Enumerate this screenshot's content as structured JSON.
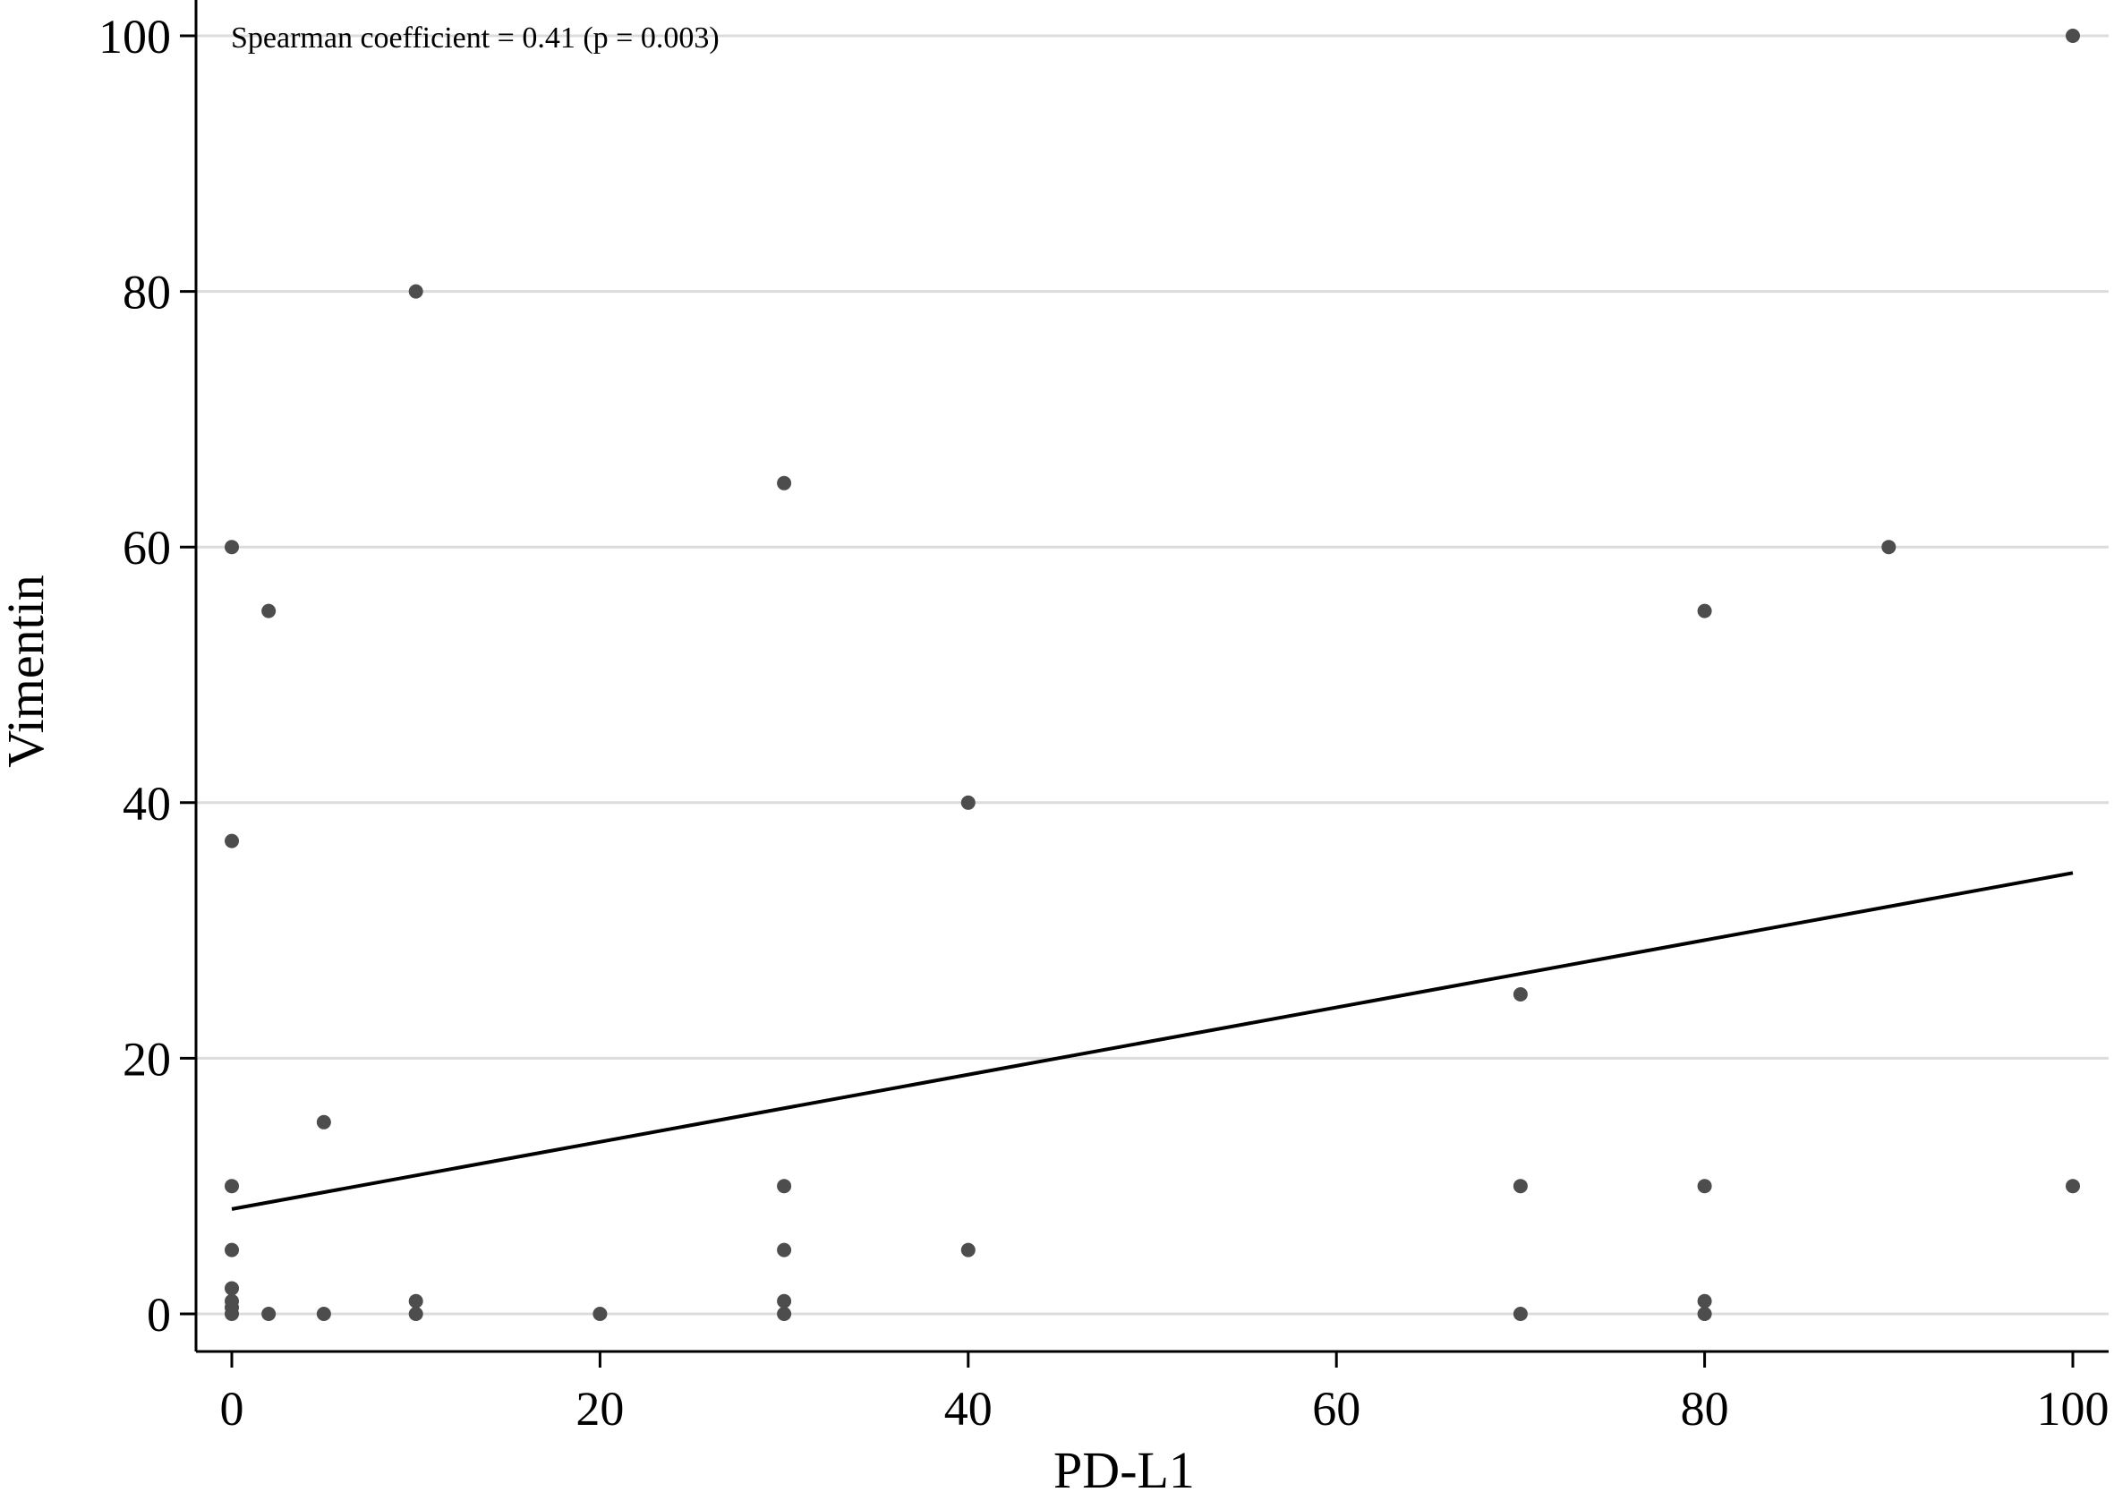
{
  "chart_data": {
    "type": "scatter",
    "title": "",
    "xlabel": "PD-L1",
    "ylabel": "Vimentin",
    "xlim": [
      0,
      100
    ],
    "ylim": [
      0,
      100
    ],
    "x_ticks": [
      0,
      20,
      40,
      60,
      80,
      100
    ],
    "y_ticks": [
      0,
      20,
      40,
      60,
      80,
      100
    ],
    "grid": "horizontal",
    "legend": "none",
    "annotation": "Spearman coefficient = 0.41 (p = 0.003)",
    "colors": {
      "points": "#4d4d4d",
      "fit_line": "#000000",
      "grid": "#dcdcdc",
      "axis": "#000000"
    },
    "points": [
      {
        "x": 0,
        "y": 0
      },
      {
        "x": 0,
        "y": 0.5
      },
      {
        "x": 0,
        "y": 1
      },
      {
        "x": 0,
        "y": 2
      },
      {
        "x": 0,
        "y": 5
      },
      {
        "x": 0,
        "y": 10
      },
      {
        "x": 0,
        "y": 37
      },
      {
        "x": 0,
        "y": 60
      },
      {
        "x": 2,
        "y": 0
      },
      {
        "x": 2,
        "y": 55
      },
      {
        "x": 5,
        "y": 0
      },
      {
        "x": 5,
        "y": 15
      },
      {
        "x": 10,
        "y": 0
      },
      {
        "x": 10,
        "y": 1
      },
      {
        "x": 10,
        "y": 80
      },
      {
        "x": 20,
        "y": 0
      },
      {
        "x": 30,
        "y": 0
      },
      {
        "x": 30,
        "y": 1
      },
      {
        "x": 30,
        "y": 5
      },
      {
        "x": 30,
        "y": 10
      },
      {
        "x": 30,
        "y": 65
      },
      {
        "x": 40,
        "y": 5
      },
      {
        "x": 40,
        "y": 40
      },
      {
        "x": 70,
        "y": 0
      },
      {
        "x": 70,
        "y": 10
      },
      {
        "x": 70,
        "y": 25
      },
      {
        "x": 80,
        "y": 0
      },
      {
        "x": 80,
        "y": 1
      },
      {
        "x": 80,
        "y": 10
      },
      {
        "x": 80,
        "y": 55
      },
      {
        "x": 90,
        "y": 60
      },
      {
        "x": 100,
        "y": 10
      },
      {
        "x": 100,
        "y": 100
      }
    ],
    "fit_line": {
      "x": [
        0,
        100
      ],
      "y": [
        8.2,
        34.5
      ]
    }
  }
}
